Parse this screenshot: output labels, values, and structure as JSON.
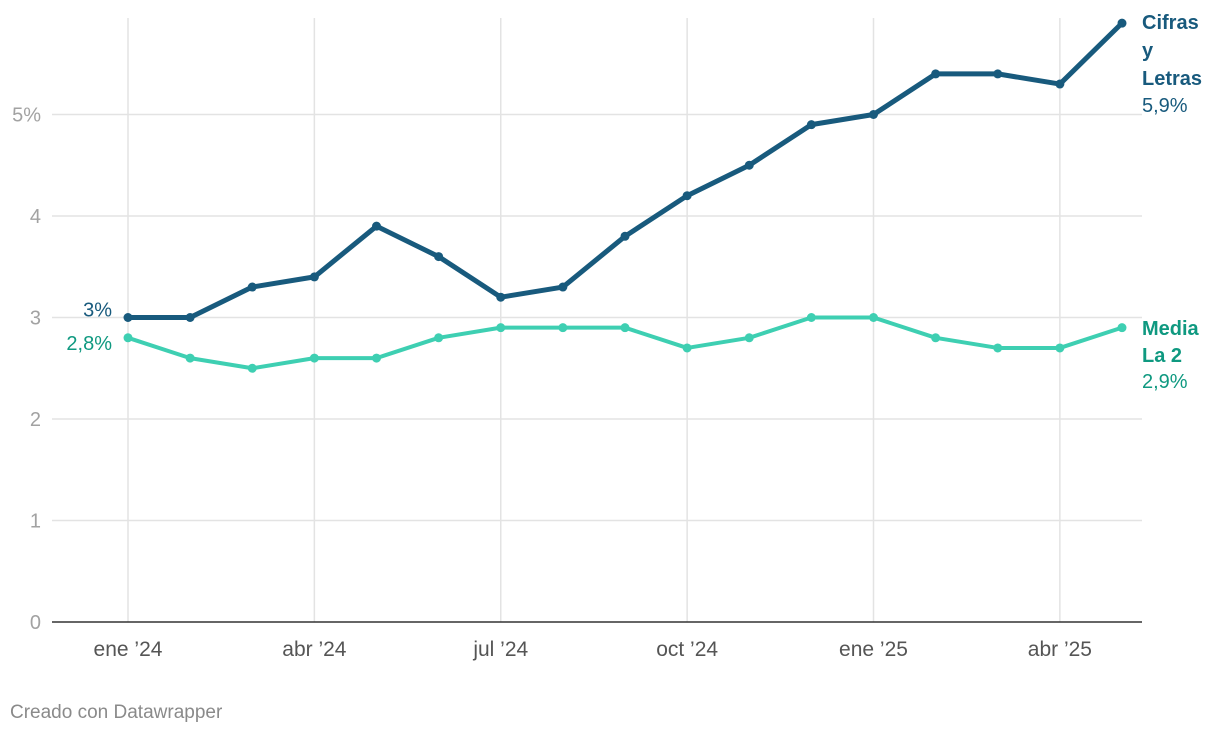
{
  "chart_data": {
    "type": "line",
    "x": [
      "2024-01",
      "2024-02",
      "2024-03",
      "2024-04",
      "2024-05",
      "2024-06",
      "2024-07",
      "2024-08",
      "2024-09",
      "2024-10",
      "2024-11",
      "2024-12",
      "2025-01",
      "2025-02",
      "2025-03",
      "2025-04",
      "2025-05"
    ],
    "x_tick_labels": [
      "ene ’24",
      "abr ’24",
      "jul ’24",
      "oct ’24",
      "ene ’25",
      "abr ’25"
    ],
    "y_tick_labels": [
      "0",
      "1",
      "2",
      "3",
      "4",
      "5%"
    ],
    "ylim": [
      0,
      6
    ],
    "grid": true,
    "series": [
      {
        "name_lines": [
          "Cifras",
          "y",
          "Letras"
        ],
        "start_label": "3%",
        "end_label": "5,9%",
        "color": "#185a7d",
        "values": [
          3.0,
          3.0,
          3.3,
          3.4,
          3.9,
          3.6,
          3.2,
          3.3,
          3.8,
          4.2,
          4.5,
          4.9,
          5.0,
          5.4,
          5.4,
          5.3,
          5.9
        ]
      },
      {
        "name_lines": [
          "Media",
          "La 2"
        ],
        "start_label": "2,8%",
        "end_label": "2,9%",
        "color": "#3ecfb2",
        "label_color": "#0f9980",
        "values": [
          2.8,
          2.6,
          2.5,
          2.6,
          2.6,
          2.8,
          2.9,
          2.9,
          2.9,
          2.7,
          2.8,
          3.0,
          3.0,
          2.8,
          2.7,
          2.7,
          2.9
        ]
      }
    ]
  },
  "footer": {
    "credit": "Creado con Datawrapper"
  }
}
